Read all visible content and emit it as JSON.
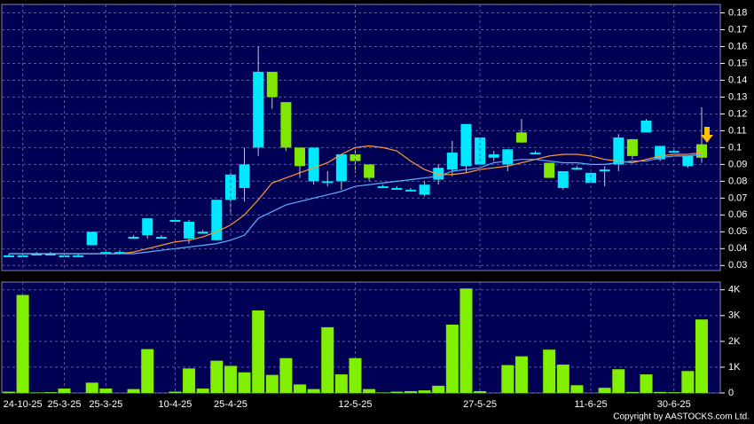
{
  "chart_data": [
    {
      "type": "candlestick",
      "open": [
        0.036,
        0.036,
        0.037,
        0.037,
        0.036,
        0.036,
        0.042,
        0.038,
        0.038,
        0.047,
        0.048,
        0.047,
        0.057,
        0.046,
        0.05,
        0.045,
        0.069,
        0.076,
        0.1,
        0.145,
        0.127,
        0.1,
        0.08,
        0.08,
        0.08,
        0.096,
        0.09,
        0.077,
        0.076,
        0.075,
        0.072,
        0.081,
        0.087,
        0.089,
        0.09,
        0.094,
        0.09,
        0.109,
        0.097,
        0.091,
        0.076,
        0.088,
        0.079,
        0.087,
        0.09,
        0.105,
        0.109,
        0.093,
        0.098,
        0.089,
        0.102
      ],
      "high": [
        0.037,
        0.037,
        0.038,
        0.038,
        0.037,
        0.037,
        0.05,
        0.039,
        0.039,
        0.048,
        0.058,
        0.048,
        0.058,
        0.057,
        0.051,
        0.069,
        0.085,
        0.1,
        0.16,
        0.145,
        0.127,
        0.1,
        0.1,
        0.086,
        0.096,
        0.1,
        0.09,
        0.078,
        0.077,
        0.076,
        0.08,
        0.09,
        0.104,
        0.114,
        0.106,
        0.098,
        0.099,
        0.117,
        0.098,
        0.091,
        0.086,
        0.089,
        0.085,
        0.089,
        0.108,
        0.105,
        0.117,
        0.101,
        0.099,
        0.095,
        0.124
      ],
      "low": [
        0.035,
        0.035,
        0.036,
        0.036,
        0.035,
        0.035,
        0.042,
        0.037,
        0.037,
        0.046,
        0.046,
        0.046,
        0.056,
        0.043,
        0.049,
        0.045,
        0.06,
        0.068,
        0.095,
        0.123,
        0.098,
        0.082,
        0.078,
        0.077,
        0.075,
        0.085,
        0.08,
        0.076,
        0.075,
        0.074,
        0.071,
        0.078,
        0.083,
        0.085,
        0.089,
        0.092,
        0.086,
        0.103,
        0.096,
        0.082,
        0.075,
        0.087,
        0.079,
        0.077,
        0.086,
        0.093,
        0.109,
        0.092,
        0.097,
        0.088,
        0.091
      ],
      "close": [
        0.036,
        0.036,
        0.037,
        0.037,
        0.036,
        0.036,
        0.05,
        0.038,
        0.038,
        0.047,
        0.058,
        0.047,
        0.057,
        0.056,
        0.05,
        0.069,
        0.084,
        0.09,
        0.145,
        0.13,
        0.1,
        0.089,
        0.1,
        0.08,
        0.096,
        0.092,
        0.082,
        0.077,
        0.076,
        0.075,
        0.078,
        0.088,
        0.097,
        0.114,
        0.106,
        0.096,
        0.099,
        0.103,
        0.097,
        0.082,
        0.086,
        0.088,
        0.085,
        0.087,
        0.106,
        0.095,
        0.116,
        0.101,
        0.098,
        0.095,
        0.094
      ],
      "up_color": "#00e8ff",
      "down_color": "#80e800",
      "lines": [
        {
          "color": "#ff9a30",
          "values": [
            0.037,
            0.037,
            0.037,
            0.037,
            0.037,
            0.037,
            0.037,
            0.037,
            0.037,
            0.038,
            0.04,
            0.042,
            0.044,
            0.045,
            0.047,
            0.05,
            0.054,
            0.06,
            0.069,
            0.079,
            0.082,
            0.085,
            0.088,
            0.091,
            0.096,
            0.1,
            0.101,
            0.1,
            0.098,
            0.092,
            0.087,
            0.084,
            0.084,
            0.085,
            0.087,
            0.088,
            0.089,
            0.091,
            0.093,
            0.095,
            0.096,
            0.096,
            0.095,
            0.093,
            0.092,
            0.091,
            0.093,
            0.095,
            0.096,
            0.096,
            0.097
          ]
        },
        {
          "color": "#5ab4ff",
          "values": [
            0.037,
            0.037,
            0.037,
            0.037,
            0.037,
            0.037,
            0.037,
            0.037,
            0.037,
            0.037,
            0.038,
            0.039,
            0.04,
            0.041,
            0.042,
            0.043,
            0.045,
            0.048,
            0.058,
            0.062,
            0.066,
            0.068,
            0.07,
            0.072,
            0.074,
            0.077,
            0.078,
            0.079,
            0.08,
            0.081,
            0.082,
            0.083,
            0.086,
            0.087,
            0.088,
            0.091,
            0.092,
            0.093,
            0.093,
            0.092,
            0.091,
            0.091,
            0.09,
            0.09,
            0.091,
            0.092,
            0.092,
            0.094,
            0.095,
            0.095,
            0.096
          ]
        }
      ],
      "ylim": [
        0.027,
        0.185
      ],
      "yticks": [
        0.03,
        0.04,
        0.05,
        0.06,
        0.07,
        0.08,
        0.09,
        0.1,
        0.11,
        0.12,
        0.13,
        0.14,
        0.15,
        0.16,
        0.17,
        0.18
      ],
      "grid": true
    },
    {
      "type": "bar",
      "categories": [
        null,
        "24-10-25",
        null,
        null,
        "25-3-25",
        null,
        null,
        "25-3-25",
        null,
        null,
        null,
        null,
        "10-4-25",
        null,
        null,
        null,
        "25-4-25",
        null,
        null,
        null,
        null,
        null,
        null,
        null,
        null,
        "12-5-25",
        null,
        null,
        null,
        null,
        null,
        null,
        null,
        null,
        "27-5-25",
        null,
        null,
        null,
        null,
        null,
        null,
        null,
        "11-6-25",
        null,
        null,
        null,
        null,
        null,
        "30-6-25",
        null,
        null
      ],
      "values": [
        50,
        3800,
        20,
        30,
        170,
        0,
        400,
        170,
        0,
        150,
        1700,
        0,
        50,
        950,
        170,
        1250,
        1050,
        800,
        3200,
        700,
        1350,
        330,
        150,
        2550,
        720,
        1350,
        150,
        20,
        50,
        70,
        100,
        280,
        2650,
        4050,
        70,
        0,
        1080,
        1420,
        0,
        1680,
        1100,
        300,
        0,
        200,
        920,
        40,
        720,
        40,
        30,
        850,
        2850
      ],
      "color": "#80f000",
      "ylim": [
        0,
        4300
      ],
      "yticks": [
        0,
        {
          "value": 1000,
          "label": "1K"
        },
        {
          "value": 2000,
          "label": "2K"
        },
        {
          "value": 3000,
          "label": "3K"
        },
        {
          "value": 4000,
          "label": "4K"
        }
      ],
      "grid": true
    }
  ],
  "footer": "Copyright by AASTOCKS.com Ltd."
}
